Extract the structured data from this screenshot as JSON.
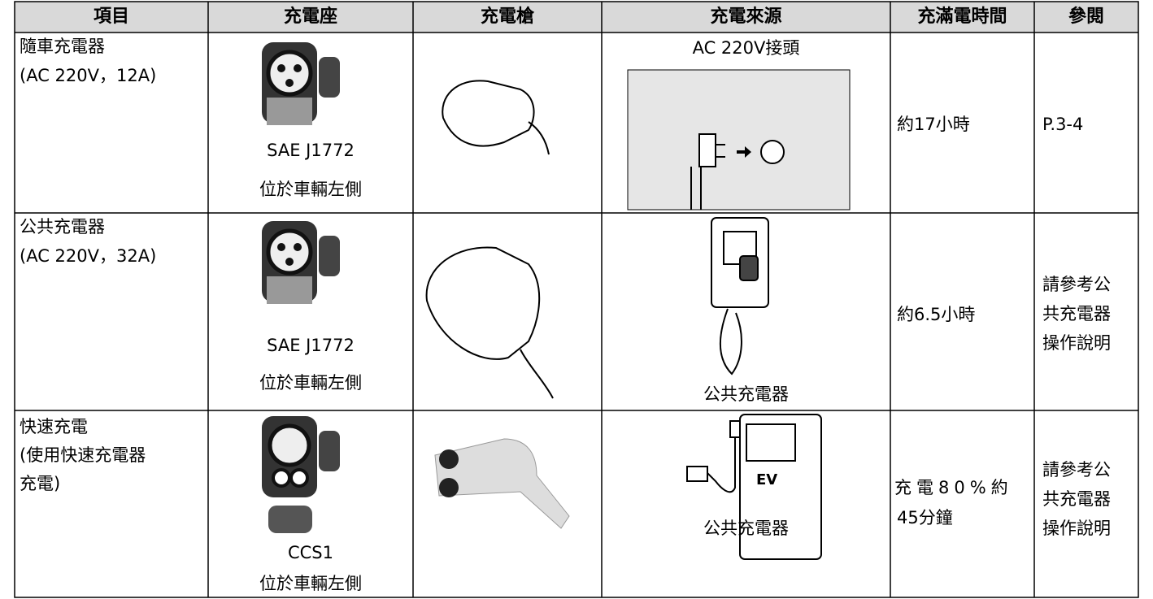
{
  "table": {
    "header": [
      "項目",
      "充電座",
      "充電槍",
      "充電來源",
      "充滿電時間",
      "參閱"
    ],
    "rows": [
      {
        "item": [
          "隨車充電器",
          "(AC 220V，12A)"
        ],
        "socket": [
          "SAE J1772",
          "位於車輛左側"
        ],
        "source": [
          "AC 220V接頭"
        ],
        "time": [
          "約17小時"
        ],
        "ref": [
          "P.3-4"
        ]
      },
      {
        "item": [
          "公共充電器",
          "(AC 220V，32A)"
        ],
        "socket": [
          "SAE J1772",
          "位於車輛左側"
        ],
        "source": [
          "公共充電器"
        ],
        "time": [
          "約6.5小時"
        ],
        "ref": [
          "請參考公",
          "共充電器",
          "操作說明"
        ]
      },
      {
        "item": [
          "快速充電",
          "(使用快速充電器",
          "充電)"
        ],
        "socket": [
          "CCS1",
          "位於車輛左側"
        ],
        "source": [
          "公共充電器"
        ],
        "source_badge": "EV",
        "time": [
          "充電80%約",
          "45分鐘"
        ],
        "ref": [
          "請參考公",
          "共充電器",
          "操作說明"
        ]
      }
    ]
  }
}
